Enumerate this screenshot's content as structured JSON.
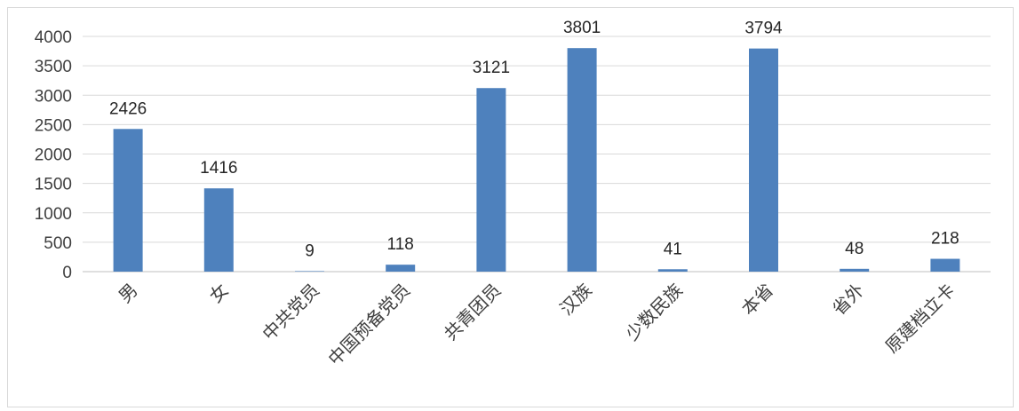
{
  "chart_data": {
    "type": "bar",
    "categories": [
      "男",
      "女",
      "中共党员",
      "中国预备党员",
      "共青团员",
      "汉族",
      "少数民族",
      "本省",
      "省外",
      "原建档立卡"
    ],
    "values": [
      2426,
      1416,
      9,
      118,
      3121,
      3801,
      41,
      3794,
      48,
      218
    ],
    "ylim": [
      0,
      4000
    ],
    "yticks": [
      0,
      500,
      1000,
      1500,
      2000,
      2500,
      3000,
      3500,
      4000
    ],
    "grid": true,
    "legend": "none",
    "colors": {
      "bar": "#4e81bd",
      "grid": "#d9d9d9",
      "axis": "#bfbfbf"
    }
  }
}
